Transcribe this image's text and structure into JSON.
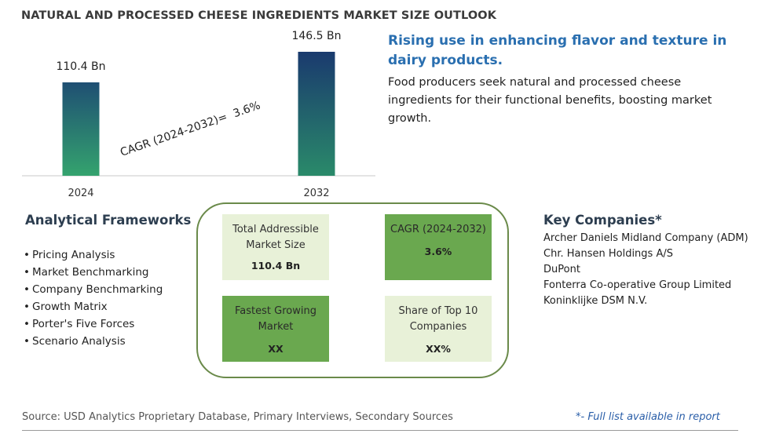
{
  "title": "NATURAL AND PROCESSED CHEESE INGREDIENTS MARKET SIZE OUTLOOK",
  "chart_data": {
    "type": "bar",
    "categories": [
      "2024",
      "2032"
    ],
    "values": [
      110.4,
      146.5
    ],
    "value_labels": [
      "110.4 Bn",
      "146.5 Bn"
    ],
    "annotation": "CAGR (2024-2032)=  3.6%",
    "bar_colors": [
      "#2a8a6a",
      "#1c3f6e"
    ],
    "grid": false
  },
  "headline": "Rising use in enhancing flavor and texture in dairy products.",
  "description": "Food producers seek natural and processed cheese ingredients for their functional benefits, boosting market growth.",
  "frameworks": {
    "title": "Analytical Frameworks",
    "bullet": "•",
    "items": [
      "Pricing Analysis",
      "Market Benchmarking",
      "Company Benchmarking",
      "Growth Matrix",
      "Porter's Five Forces",
      "Scenario Analysis"
    ]
  },
  "metrics": {
    "tam": {
      "label": "Total Addressible Market Size",
      "value": "110.4 Bn"
    },
    "cagr": {
      "label": "CAGR (2024-2032)",
      "value": "3.6%"
    },
    "fastest": {
      "label": "Fastest Growing Market",
      "value": "XX"
    },
    "share": {
      "label": "Share of Top 10 Companies",
      "value": "XX%"
    }
  },
  "companies": {
    "title": "Key Companies*",
    "items": [
      "Archer Daniels Midland Company (ADM)",
      "Chr. Hansen Holdings A/S",
      "DuPont",
      "Fonterra Co-operative Group Limited",
      "Koninklijke DSM N.V."
    ]
  },
  "footer": {
    "source": "Source: USD Analytics Proprietary Database, Primary Interviews, Secondary Sources",
    "note": "*- Full list available in report"
  }
}
